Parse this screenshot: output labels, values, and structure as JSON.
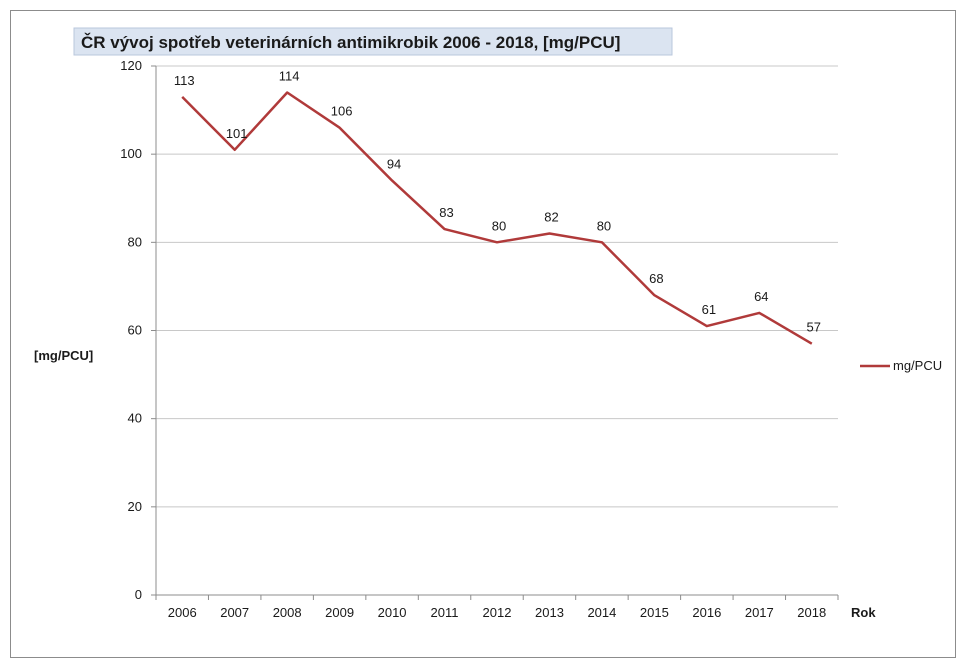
{
  "chart_data": {
    "type": "line",
    "title": "ČR vývoj spotřeb veterinárních antimikrobik 2006 - 2018, [mg/PCU]",
    "xlabel": "Rok",
    "ylabel": "[mg/PCU]",
    "categories": [
      "2006",
      "2007",
      "2008",
      "2009",
      "2010",
      "2011",
      "2012",
      "2013",
      "2014",
      "2015",
      "2016",
      "2017",
      "2018"
    ],
    "series": [
      {
        "name": "mg/PCU",
        "values": [
          113,
          101,
          114,
          106,
          94,
          83,
          80,
          82,
          80,
          68,
          61,
          64,
          57
        ],
        "color": "#b03a3a"
      }
    ],
    "yticks": [
      0,
      20,
      40,
      60,
      80,
      100,
      120
    ],
    "ylim": [
      0,
      120
    ],
    "grid": true,
    "legend_position": "right"
  }
}
